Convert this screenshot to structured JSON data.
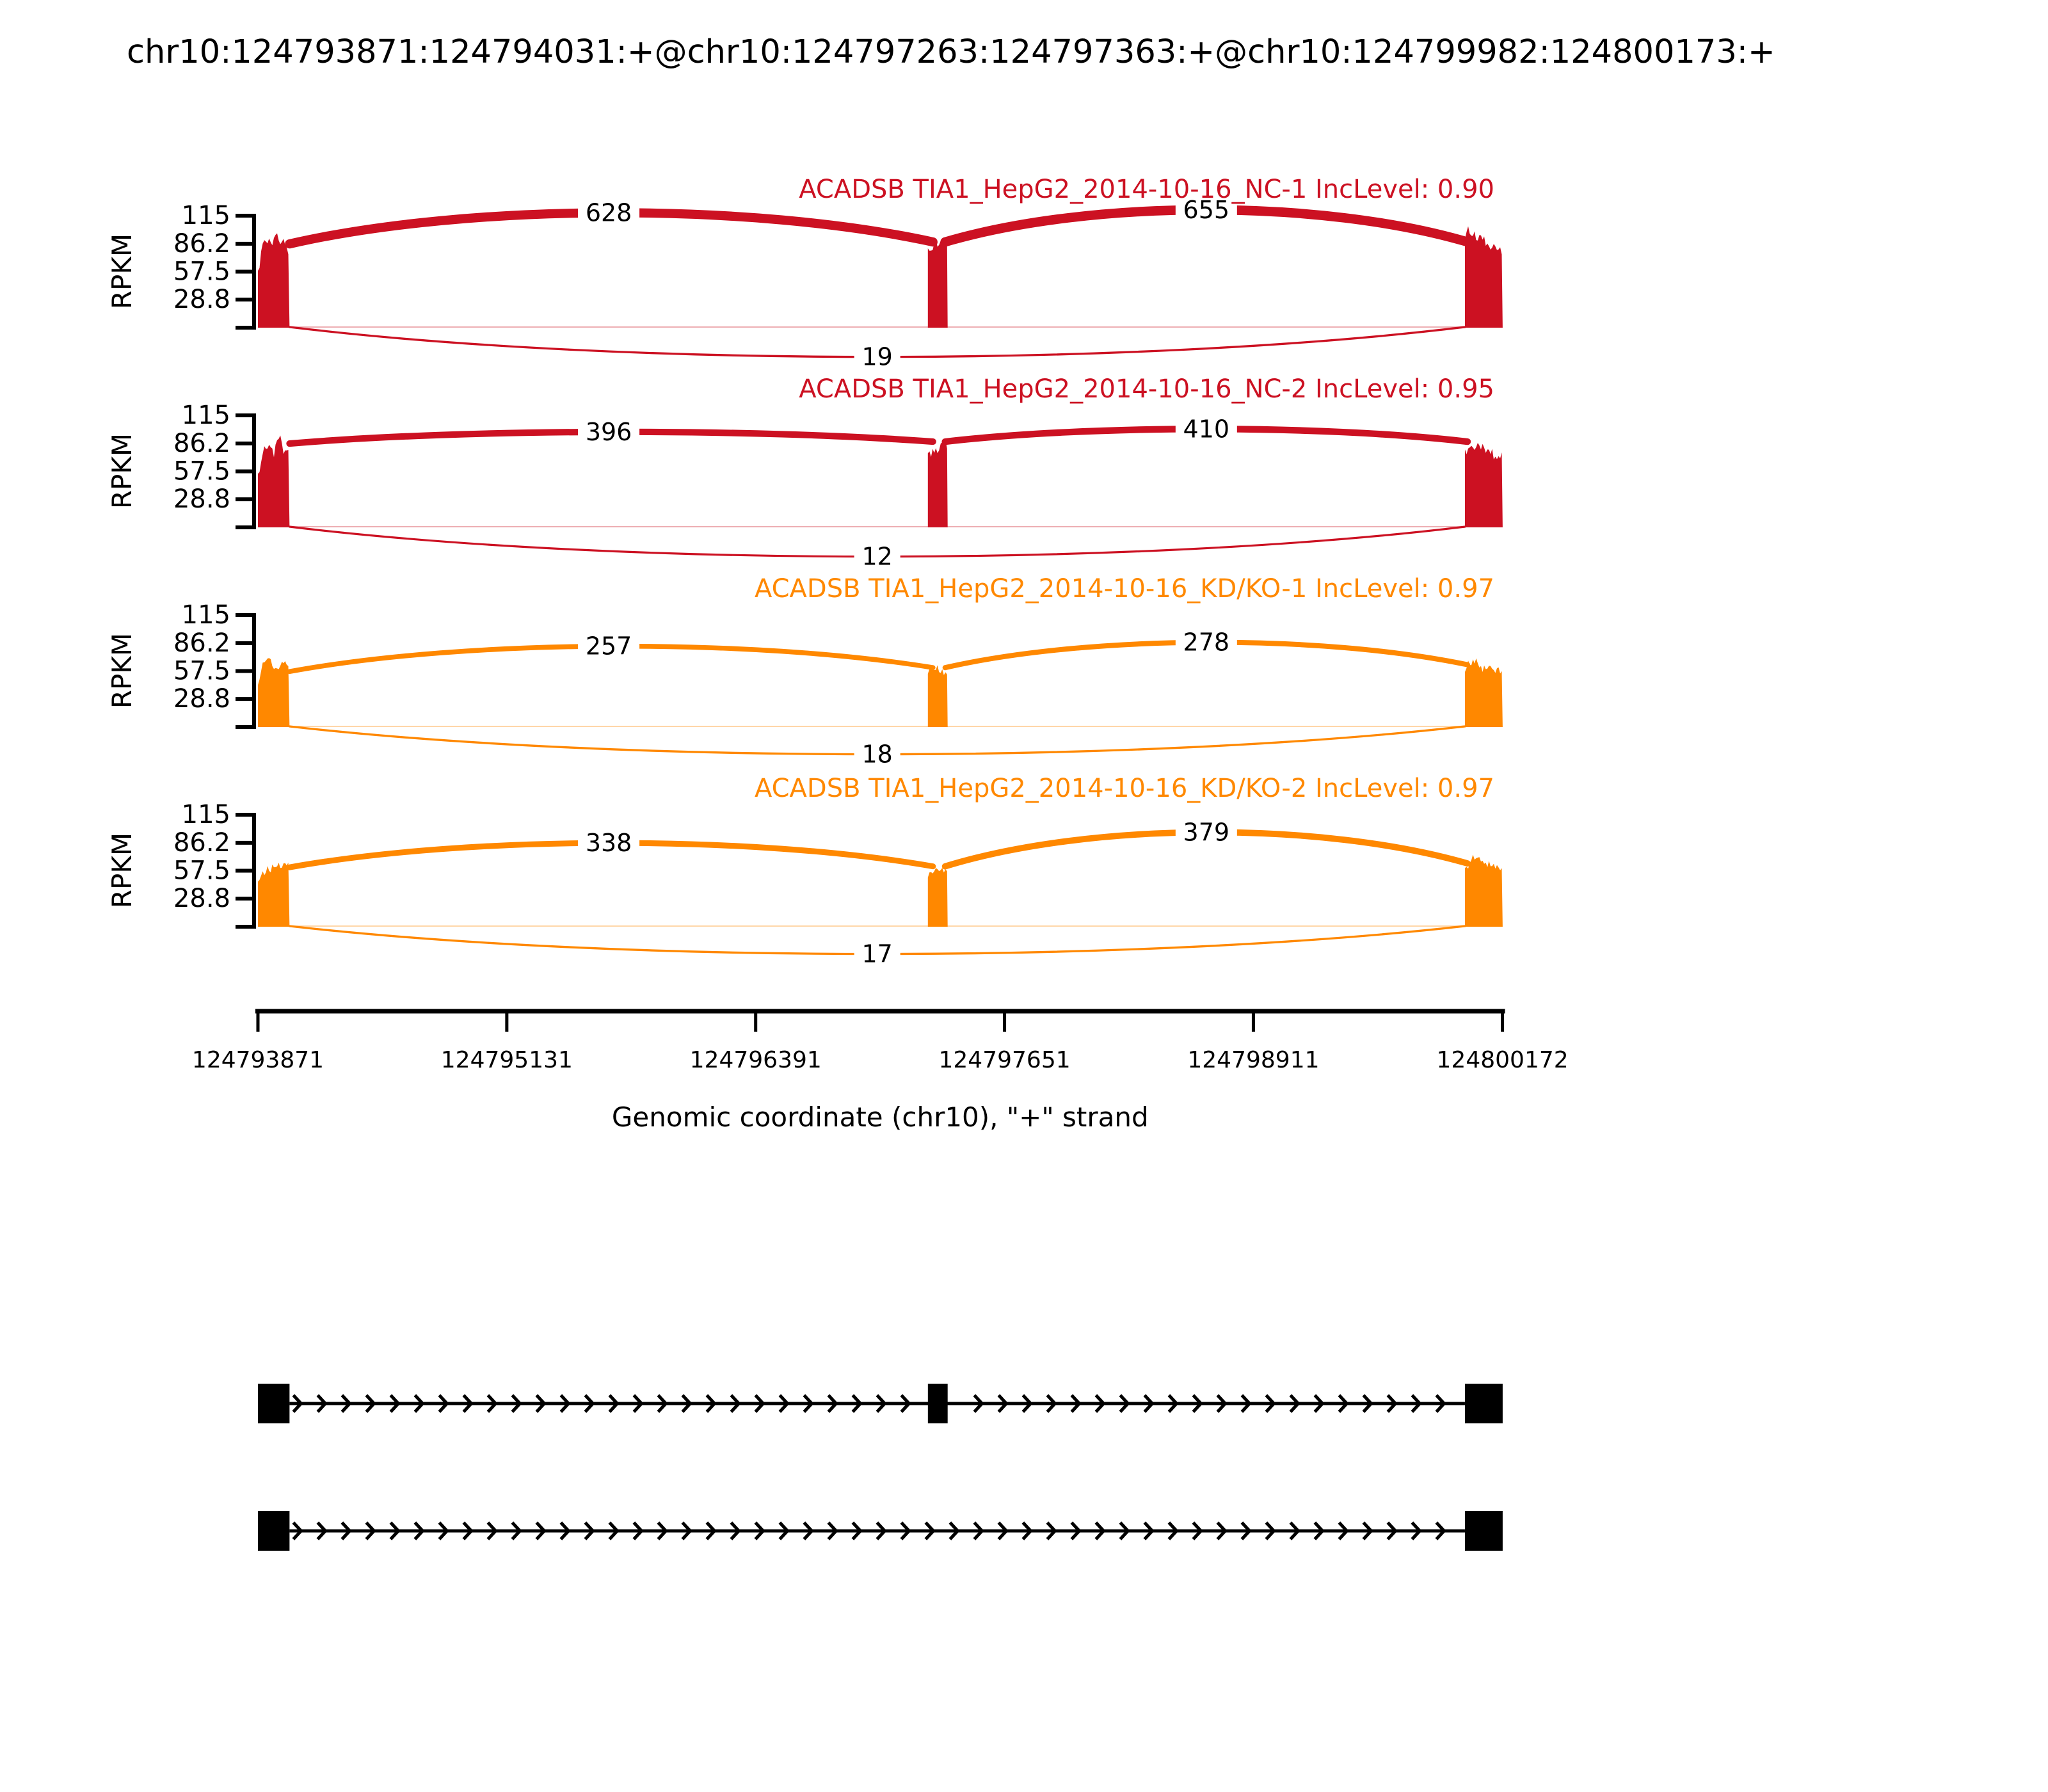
{
  "title": "chr10:124793871:124794031:+@chr10:124797263:124797363:+@chr10:124799982:124800173:+",
  "colors": {
    "nc_red": "#CC1122",
    "kdko_orange": "#FF8800",
    "axis_black": "#000000",
    "background": "#FFFFFF"
  },
  "chart_data": {
    "type": "sashimi",
    "title": "chr10:124793871:124794031:+@chr10:124797263:124797363:+@chr10:124799982:124800173:+",
    "xlabel": "Genomic coordinate (chr10), \"+\" strand",
    "ylabel": "RPKM",
    "grid": false,
    "legend_position": "none",
    "y_max": 115,
    "y_ticks": [
      "115",
      "86.2",
      "57.5",
      "28.8"
    ],
    "x_start": 124793871,
    "x_end": 124800172,
    "x_ticks": [
      "124793871",
      "124795131",
      "124796391",
      "124797651",
      "124798911",
      "124800172"
    ],
    "exons_bp": [
      [
        124793871,
        124794031
      ],
      [
        124797263,
        124797363
      ],
      [
        124799982,
        124800173
      ]
    ],
    "tracks": [
      {
        "id": "NC-1",
        "label": "ACADSB TIA1_HepG2_2014-10-16_NC-1 IncLevel: 0.90",
        "inc_level": "0.90",
        "color": "#CC1122",
        "junctions": {
          "left": {
            "count": 628,
            "apex_rpkm": 118
          },
          "right": {
            "count": 655,
            "apex_rpkm": 121
          },
          "skip": {
            "count": 19,
            "dip_rpkm": 30
          }
        },
        "attach_rpkm": [
          86,
          88,
          88
        ],
        "peak_rpkm": [
          100,
          96,
          110
        ]
      },
      {
        "id": "NC-2",
        "label": "ACADSB TIA1_HepG2_2014-10-16_NC-2 IncLevel: 0.95",
        "inc_level": "0.95",
        "color": "#CC1122",
        "junctions": {
          "left": {
            "count": 396,
            "apex_rpkm": 98
          },
          "right": {
            "count": 410,
            "apex_rpkm": 101
          },
          "skip": {
            "count": 12,
            "dip_rpkm": 30
          }
        },
        "attach_rpkm": [
          86,
          88,
          88
        ],
        "peak_rpkm": [
          96,
          92,
          100
        ]
      },
      {
        "id": "KD/KO-1",
        "label": "ACADSB TIA1_HepG2_2014-10-16_KD/KO-1 IncLevel: 0.97",
        "inc_level": "0.97",
        "color": "#FF8800",
        "junctions": {
          "left": {
            "count": 257,
            "apex_rpkm": 83
          },
          "right": {
            "count": 278,
            "apex_rpkm": 87
          },
          "skip": {
            "count": 18,
            "dip_rpkm": 28
          }
        },
        "attach_rpkm": [
          57,
          61,
          64
        ],
        "peak_rpkm": [
          72,
          68,
          78
        ]
      },
      {
        "id": "KD/KO-2",
        "label": "ACADSB TIA1_HepG2_2014-10-16_KD/KO-2 IncLevel: 0.97",
        "inc_level": "0.97",
        "color": "#FF8800",
        "junctions": {
          "left": {
            "count": 338,
            "apex_rpkm": 86
          },
          "right": {
            "count": 379,
            "apex_rpkm": 97
          },
          "skip": {
            "count": 17,
            "dip_rpkm": 28
          }
        },
        "attach_rpkm": [
          61,
          62,
          65
        ],
        "peak_rpkm": [
          70,
          66,
          82
        ]
      }
    ],
    "transcripts": [
      {
        "id": "inclusion-isoform",
        "exons": [
          0,
          1,
          2
        ]
      },
      {
        "id": "skipping-isoform",
        "exons": [
          0,
          2
        ]
      }
    ]
  }
}
